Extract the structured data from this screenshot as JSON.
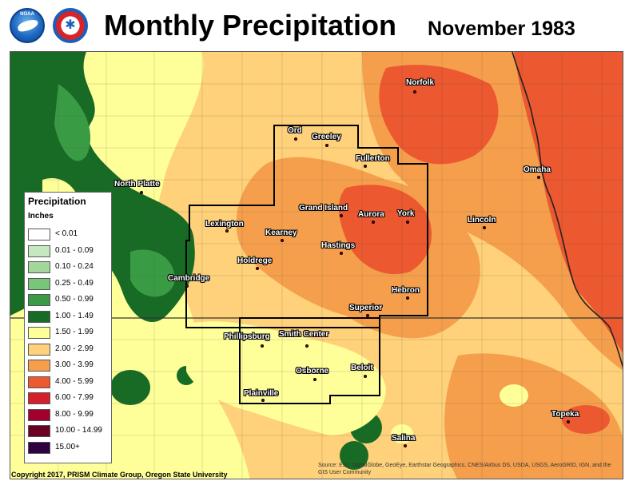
{
  "header": {
    "title": "Monthly Precipitation",
    "subtitle": "November 1983",
    "logos": [
      {
        "name": "noaa-logo",
        "text": "NOAA"
      },
      {
        "name": "nws-logo",
        "text": "NATIONAL WEATHER SERVICE"
      }
    ]
  },
  "legend": {
    "title": "Precipitation",
    "units": "Inches",
    "items": [
      {
        "label": "< 0.01",
        "color": "#ffffff"
      },
      {
        "label": "0.01 - 0.09",
        "color": "#c6e8c0"
      },
      {
        "label": "0.10 - 0.24",
        "color": "#a2d69b"
      },
      {
        "label": "0.25 - 0.49",
        "color": "#78c679"
      },
      {
        "label": "0.50 - 0.99",
        "color": "#3a9b45"
      },
      {
        "label": "1.00 - 1.49",
        "color": "#176b25"
      },
      {
        "label": "1.50 - 1.99",
        "color": "#ffff9a"
      },
      {
        "label": "2.00 - 2.99",
        "color": "#fed17a"
      },
      {
        "label": "3.00 - 3.99",
        "color": "#f59f4d"
      },
      {
        "label": "4.00 - 5.99",
        "color": "#ec5830"
      },
      {
        "label": "6.00 - 7.99",
        "color": "#d4202c"
      },
      {
        "label": "8.00 - 9.99",
        "color": "#a4002e"
      },
      {
        "label": "10.00 - 14.99",
        "color": "#6b0024"
      },
      {
        "label": "15.00+",
        "color": "#2e0140"
      }
    ]
  },
  "cities": [
    {
      "name": "Norfolk"
    },
    {
      "name": "Ord"
    },
    {
      "name": "Greeley"
    },
    {
      "name": "Fullerton"
    },
    {
      "name": "Omaha"
    },
    {
      "name": "North Platte"
    },
    {
      "name": "Grand Island"
    },
    {
      "name": "Aurora"
    },
    {
      "name": "York"
    },
    {
      "name": "Lincoln"
    },
    {
      "name": "Lexington"
    },
    {
      "name": "Kearney"
    },
    {
      "name": "Hastings"
    },
    {
      "name": "Holdrege"
    },
    {
      "name": "Cambridge"
    },
    {
      "name": "Hebron"
    },
    {
      "name": "Superior"
    },
    {
      "name": "Phillipsburg"
    },
    {
      "name": "Smith Center"
    },
    {
      "name": "Osborne"
    },
    {
      "name": "Beloit"
    },
    {
      "name": "Plainville"
    },
    {
      "name": "Topeka"
    },
    {
      "name": "Salina"
    }
  ],
  "footer": {
    "copyright": "Copyright 2017, PRISM Climate Group, Oregon State University",
    "source": "Source: Esri, DigitalGlobe, GeoEye, Earthstar Geographics, CNES/Airbus DS, USDA, USGS, AeroGRID, IGN, and the GIS User Community"
  }
}
